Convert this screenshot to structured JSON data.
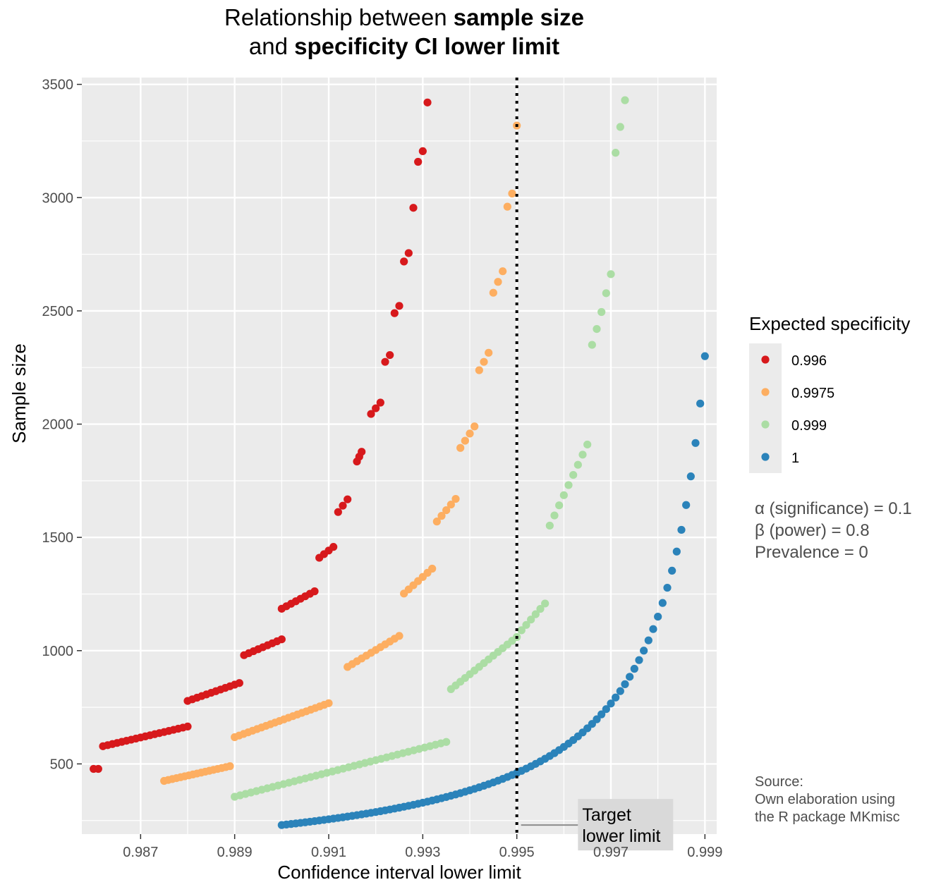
{
  "chart_data": {
    "type": "scatter",
    "title_parts": [
      [
        {
          "text": "Relationship between ",
          "bold": false
        },
        {
          "text": "sample size",
          "bold": true
        }
      ],
      [
        {
          "text": "and ",
          "bold": false
        },
        {
          "text": "specificity CI lower limit",
          "bold": true
        }
      ]
    ],
    "xlabel": "Confidence interval lower limit",
    "ylabel": "Sample size",
    "xlim": [
      0.98575,
      0.99925
    ],
    "ylim": [
      190,
      3530
    ],
    "x_ticks": [
      "0.987",
      "0.989",
      "0.991",
      "0.993",
      "0.995",
      "0.997",
      "0.999"
    ],
    "y_ticks": [
      "500",
      "1000",
      "1500",
      "2000",
      "2500",
      "3000",
      "3500"
    ],
    "grid": true,
    "legend": {
      "title": "Expected specificity",
      "position": "right",
      "entries": [
        {
          "label": "0.996",
          "color": "#d7191c"
        },
        {
          "label": "0.9975",
          "color": "#fdae61"
        },
        {
          "label": "0.999",
          "color": "#abdda4"
        },
        {
          "label": "1",
          "color": "#2b83ba"
        }
      ]
    },
    "reference_line": {
      "x": 0.995,
      "style": "dotted",
      "color": "#000000"
    },
    "annotation": {
      "lines": [
        "Target",
        "lower limit"
      ],
      "x": 0.9963,
      "y": 230
    },
    "caption_lines": [
      "α (significance) = 0.1",
      "β (power) = 0.8",
      "Prevalence = 0"
    ],
    "source_lines": [
      "Source:",
      "Own elaboration using",
      "the R package MKmisc"
    ],
    "series": [
      {
        "name": "0.996",
        "color": "#d7191c",
        "segments": [
          {
            "x0": 0.986,
            "x1": 0.9861,
            "y0": 478,
            "y1": 478,
            "n": 2
          },
          {
            "x0": 0.9862,
            "x1": 0.988,
            "y0": 578,
            "y1": 665,
            "n": 19
          },
          {
            "x0": 0.988,
            "x1": 0.9891,
            "y0": 778,
            "y1": 857,
            "n": 12
          },
          {
            "x0": 0.9892,
            "x1": 0.99,
            "y0": 980,
            "y1": 1050,
            "n": 9
          },
          {
            "x0": 0.99,
            "x1": 0.9907,
            "y0": 1185,
            "y1": 1262,
            "n": 8
          },
          {
            "x0": 0.9908,
            "x1": 0.9911,
            "y0": 1410,
            "y1": 1458,
            "n": 4
          },
          {
            "x0": 0.9912,
            "x1": 0.9914,
            "y0": 1612,
            "y1": 1668,
            "n": 3
          },
          {
            "x0": 0.9916,
            "x1": 0.9917,
            "y0": 1835,
            "y1": 1878,
            "n": 3
          },
          {
            "x0": 0.9919,
            "x1": 0.9921,
            "y0": 2045,
            "y1": 2095,
            "n": 3
          }
        ],
        "points": [
          [
            0.9922,
            2275
          ],
          [
            0.9923,
            2305
          ],
          [
            0.9924,
            2490
          ],
          [
            0.9925,
            2522
          ],
          [
            0.9926,
            2718
          ],
          [
            0.9927,
            2755
          ],
          [
            0.9928,
            2955
          ],
          [
            0.9929,
            3158
          ],
          [
            0.993,
            3205
          ],
          [
            0.9931,
            3420
          ]
        ]
      },
      {
        "name": "0.9975",
        "color": "#fdae61",
        "segments": [
          {
            "x0": 0.9875,
            "x1": 0.9889,
            "y0": 425,
            "y1": 490,
            "n": 17
          },
          {
            "x0": 0.989,
            "x1": 0.991,
            "y0": 618,
            "y1": 768,
            "n": 22
          },
          {
            "x0": 0.9914,
            "x1": 0.9925,
            "y0": 928,
            "y1": 1065,
            "n": 12
          },
          {
            "x0": 0.9926,
            "x1": 0.9932,
            "y0": 1252,
            "y1": 1362,
            "n": 7
          },
          {
            "x0": 0.9933,
            "x1": 0.9937,
            "y0": 1570,
            "y1": 1670,
            "n": 5
          },
          {
            "x0": 0.9938,
            "x1": 0.9941,
            "y0": 1895,
            "y1": 1990,
            "n": 4
          }
        ],
        "points": [
          [
            0.9942,
            2238
          ],
          [
            0.9943,
            2275
          ],
          [
            0.9944,
            2315
          ],
          [
            0.9945,
            2580
          ],
          [
            0.9946,
            2628
          ],
          [
            0.9947,
            2675
          ],
          [
            0.9948,
            2960
          ],
          [
            0.9949,
            3018
          ],
          [
            0.995,
            3318
          ]
        ]
      },
      {
        "name": "0.999",
        "color": "#abdda4",
        "segments": [
          {
            "x0": 0.989,
            "x1": 0.9935,
            "y0": 355,
            "y1": 597,
            "n": 40
          },
          {
            "x0": 0.9936,
            "x1": 0.995,
            "y0": 830,
            "y1": 1060,
            "n": 15
          },
          {
            "x0": 0.9951,
            "x1": 0.9956,
            "y0": 1090,
            "y1": 1208,
            "n": 6
          },
          {
            "x0": 0.9957,
            "x1": 0.9965,
            "y0": 1552,
            "y1": 1910,
            "n": 9
          }
        ],
        "points": [
          [
            0.9966,
            2350
          ],
          [
            0.9967,
            2420
          ],
          [
            0.9968,
            2495
          ],
          [
            0.9969,
            2578
          ],
          [
            0.997,
            2662
          ],
          [
            0.9971,
            3198
          ],
          [
            0.9972,
            3312
          ],
          [
            0.9973,
            3430
          ]
        ]
      },
      {
        "name": "1",
        "color": "#2b83ba",
        "curve": {
          "x0": 0.99,
          "x1": 0.999,
          "step": 0.0001,
          "alpha": 0.1,
          "power": 0.8
        }
      }
    ]
  }
}
